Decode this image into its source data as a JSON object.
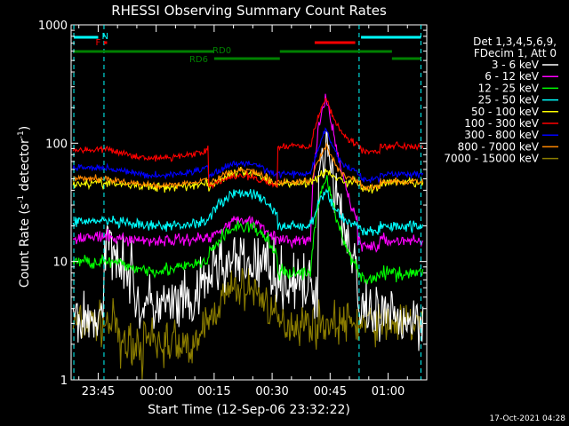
{
  "chart_data": {
    "type": "line",
    "title": "RHESSI Observing Summary Count Rates",
    "xlabel": "Start Time (12-Sep-06 23:32:22)",
    "ylabel_main": "Count Rate (s",
    "ylabel_sup1": "-1",
    "ylabel_mid": " detector",
    "ylabel_sup2": "-1",
    "ylabel_end": ")",
    "y_scale": "log",
    "ylim": [
      1,
      1000
    ],
    "xlim_minutes": [
      -22,
      70
    ],
    "x_ticks": [
      {
        "m": -15,
        "label": "23:45"
      },
      {
        "m": 0,
        "label": "00:00"
      },
      {
        "m": 15,
        "label": "00:15"
      },
      {
        "m": 30,
        "label": "00:30"
      },
      {
        "m": 45,
        "label": "00:45"
      },
      {
        "m": 60,
        "label": "01:00"
      }
    ],
    "y_ticks": [
      {
        "v": 1,
        "label": "1"
      },
      {
        "v": 10,
        "label": "10"
      },
      {
        "v": 100,
        "label": "100"
      },
      {
        "v": 1000,
        "label": "1000"
      }
    ],
    "legend_header": [
      "Det 1,3,4,5,6,9,",
      "FDecim 1, Att 0"
    ],
    "series": [
      {
        "name": "3 - 6 keV",
        "color": "#ffffff"
      },
      {
        "name": "6 - 12 keV",
        "color": "#ff00ff"
      },
      {
        "name": "12 - 25 keV",
        "color": "#00ff00"
      },
      {
        "name": "25 - 50 keV",
        "color": "#00ffff"
      },
      {
        "name": "50 - 100 keV",
        "color": "#ffff00"
      },
      {
        "name": "100 - 300 keV",
        "color": "#ff0000"
      },
      {
        "name": "300 - 800 keV",
        "color": "#0000ff"
      },
      {
        "name": "800 - 7000 keV",
        "color": "#ff8800"
      },
      {
        "name": "7000 - 15000 keV",
        "color": "#8b7d00"
      }
    ],
    "annotations": {
      "night": "N",
      "flare": "F",
      "rd0": "RD0",
      "rd6": "RD6"
    },
    "timestamp": "17-Oct-2021 04:28"
  }
}
